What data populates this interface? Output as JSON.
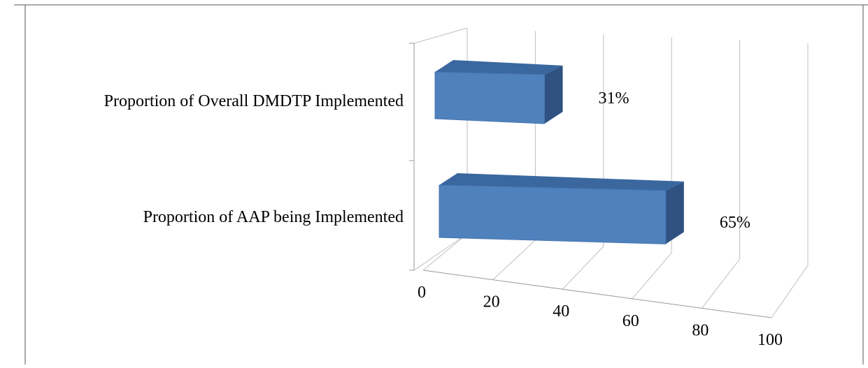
{
  "chart_data": {
    "type": "bar",
    "orientation": "horizontal",
    "style": "3d",
    "categories": [
      "Proportion of Overall DMDTP Implemented",
      "Proportion of AAP being Implemented"
    ],
    "values": [
      31,
      65
    ],
    "data_labels": [
      "31%",
      "65%"
    ],
    "xlim": [
      0,
      100
    ],
    "xticks": [
      0,
      20,
      40,
      60,
      80,
      100
    ],
    "grid": true,
    "legend": "none",
    "colors": {
      "bar_front": "#4f81bd",
      "bar_top": "#3a679e",
      "bar_side": "#2f5283",
      "grid": "#bfbfbf",
      "axis": "#9a9a9a"
    }
  }
}
